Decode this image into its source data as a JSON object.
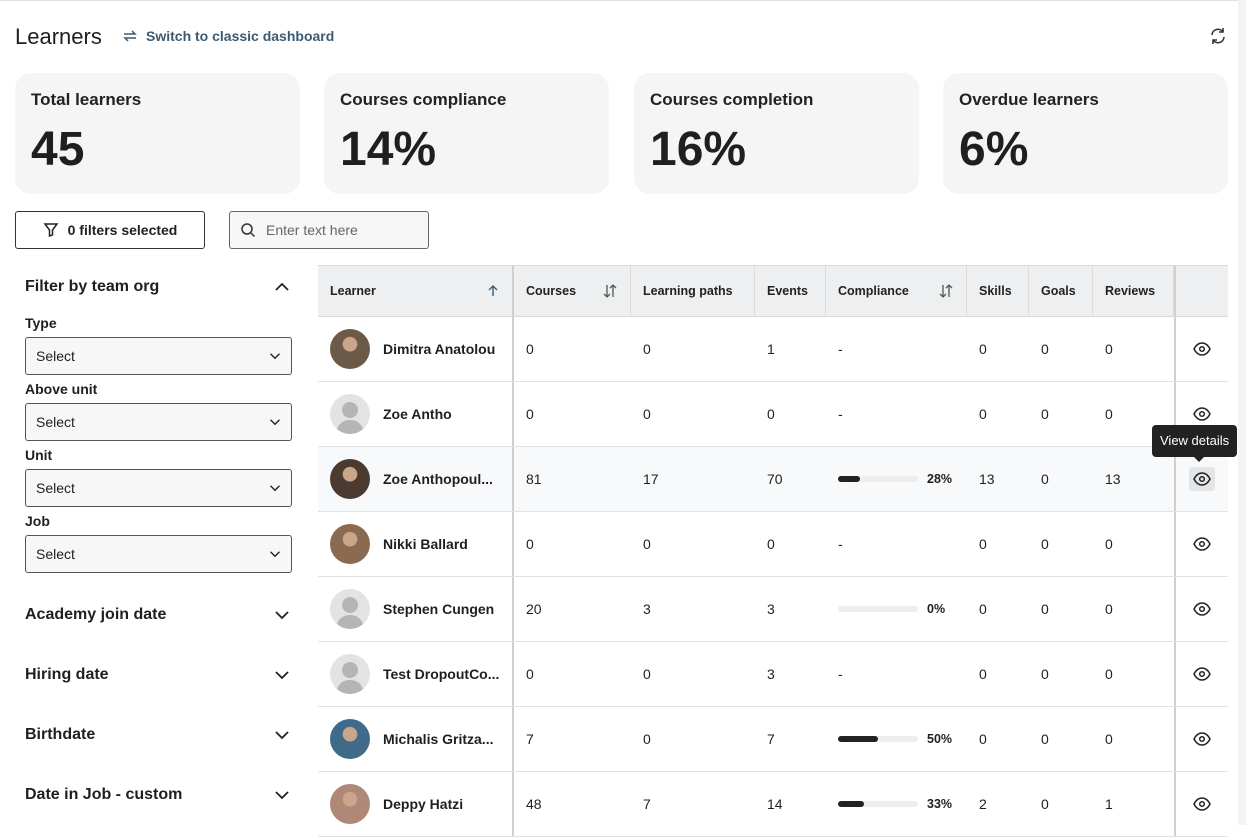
{
  "header": {
    "title": "Learners",
    "switch_label": "Switch to classic dashboard"
  },
  "stats": [
    {
      "label": "Total learners",
      "value": "45"
    },
    {
      "label": "Courses compliance",
      "value": "14%"
    },
    {
      "label": "Courses completion",
      "value": "16%"
    },
    {
      "label": "Overdue learners",
      "value": "6%"
    }
  ],
  "filters": {
    "button_label": "0 filters selected",
    "search_placeholder": "Enter text here"
  },
  "sidebar": {
    "section_title": "Filter by team org",
    "fields": [
      {
        "label": "Type",
        "value": "Select"
      },
      {
        "label": "Above unit",
        "value": "Select"
      },
      {
        "label": "Unit",
        "value": "Select"
      },
      {
        "label": "Job",
        "value": "Select"
      }
    ],
    "collapsed": [
      "Academy join date",
      "Hiring date",
      "Birthdate",
      "Date in Job - custom"
    ]
  },
  "table": {
    "columns": [
      "Learner",
      "Courses",
      "Learning paths",
      "Events",
      "Compliance",
      "Skills",
      "Goals",
      "Reviews"
    ],
    "rows": [
      {
        "name": "Dimitra Anatolou",
        "courses": "0",
        "paths": "0",
        "events": "1",
        "compliance": "-",
        "progress": null,
        "skills": "0",
        "goals": "0",
        "reviews": "0",
        "photo": true,
        "color": "#6b5a48"
      },
      {
        "name": "Zoe Antho",
        "courses": "0",
        "paths": "0",
        "events": "0",
        "compliance": "-",
        "progress": null,
        "skills": "0",
        "goals": "0",
        "reviews": "0",
        "photo": false
      },
      {
        "name": "Zoe Anthopoul...",
        "courses": "81",
        "paths": "17",
        "events": "70",
        "compliance": "28%",
        "progress": 28,
        "skills": "13",
        "goals": "0",
        "reviews": "13",
        "photo": true,
        "color": "#4a3a30"
      },
      {
        "name": "Nikki Ballard",
        "courses": "0",
        "paths": "0",
        "events": "0",
        "compliance": "-",
        "progress": null,
        "skills": "0",
        "goals": "0",
        "reviews": "0",
        "photo": true,
        "color": "#8a6a50"
      },
      {
        "name": "Stephen Cungen",
        "courses": "20",
        "paths": "3",
        "events": "3",
        "compliance": "0%",
        "progress": 0,
        "skills": "0",
        "goals": "0",
        "reviews": "0",
        "photo": false
      },
      {
        "name": "Test DropoutCo...",
        "courses": "0",
        "paths": "0",
        "events": "3",
        "compliance": "-",
        "progress": null,
        "skills": "0",
        "goals": "0",
        "reviews": "0",
        "photo": false
      },
      {
        "name": "Michalis Gritza...",
        "courses": "7",
        "paths": "0",
        "events": "7",
        "compliance": "50%",
        "progress": 50,
        "skills": "0",
        "goals": "0",
        "reviews": "0",
        "photo": true,
        "color": "#3f6a8a"
      },
      {
        "name": "Deppy Hatzi",
        "courses": "48",
        "paths": "7",
        "events": "14",
        "compliance": "33%",
        "progress": 33,
        "skills": "2",
        "goals": "0",
        "reviews": "1",
        "photo": true,
        "color": "#b08878"
      }
    ]
  },
  "tooltip": "View details"
}
